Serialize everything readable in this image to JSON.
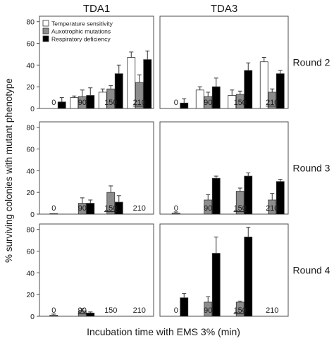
{
  "chart_data": {
    "type": "bar",
    "column_titles": [
      "TDA1",
      "TDA3"
    ],
    "row_titles": [
      "Round 2",
      "Round 3",
      "Round 4"
    ],
    "ylabel": "% surviving colonies with mutant phenotype",
    "xlabel": "Incubation time with EMS 3% (min)",
    "categories": [
      "0",
      "90",
      "150",
      "210"
    ],
    "ylim": [
      0,
      85
    ],
    "yticks": [
      0,
      20,
      40,
      60,
      80
    ],
    "legend": {
      "placement": "top-left of first panel",
      "entries": [
        {
          "name": "Temperature sensitivity",
          "color": "#ffffff"
        },
        {
          "name": "Auxotrophic mutations",
          "color": "#8c8c8c"
        },
        {
          "name": "Respiratory deficiency",
          "color": "#000000"
        }
      ]
    },
    "colors": {
      "temperature": "#ffffff",
      "auxotrophic": "#8c8c8c",
      "respiratory": "#000000",
      "axis": "#4d4d4d"
    },
    "panels": [
      {
        "strain": "TDA1",
        "round": "Round 2",
        "underlined_category": "210",
        "series": [
          {
            "name": "Temperature sensitivity",
            "values": [
              null,
              10,
              15,
              47
            ],
            "errors": [
              0,
              1.5,
              3,
              5
            ]
          },
          {
            "name": "Auxotrophic mutations",
            "values": [
              null,
              11,
              18,
              24
            ],
            "errors": [
              0,
              6,
              3,
              7
            ]
          },
          {
            "name": "Respiratory deficiency",
            "values": [
              6,
              12,
              32,
              45
            ],
            "errors": [
              4,
              7,
              8,
              8
            ]
          }
        ]
      },
      {
        "strain": "TDA3",
        "round": "Round 2",
        "underlined_category": "210",
        "series": [
          {
            "name": "Temperature sensitivity",
            "values": [
              null,
              17,
              12,
              43
            ],
            "errors": [
              0,
              3,
              5,
              4
            ]
          },
          {
            "name": "Auxotrophic mutations",
            "values": [
              null,
              11,
              13,
              15
            ],
            "errors": [
              0,
              4,
              3,
              3
            ]
          },
          {
            "name": "Respiratory deficiency",
            "values": [
              5,
              20,
              35,
              32
            ],
            "errors": [
              4,
              8,
              7,
              3
            ]
          }
        ]
      },
      {
        "strain": "TDA1",
        "round": "Round 3",
        "underlined_category": "150",
        "series": [
          {
            "name": "Temperature sensitivity",
            "values": [
              null,
              null,
              null,
              null
            ],
            "errors": [
              0,
              0,
              0,
              0
            ]
          },
          {
            "name": "Auxotrophic mutations",
            "values": [
              0.5,
              10,
              20,
              null
            ],
            "errors": [
              0,
              5,
              6,
              0
            ]
          },
          {
            "name": "Respiratory deficiency",
            "values": [
              null,
              10,
              11,
              null
            ],
            "errors": [
              0,
              3,
              6,
              0
            ]
          }
        ]
      },
      {
        "strain": "TDA3",
        "round": "Round 3",
        "underlined_category": "150",
        "series": [
          {
            "name": "Temperature sensitivity",
            "values": [
              null,
              null,
              null,
              null
            ],
            "errors": [
              0,
              0,
              0,
              0
            ]
          },
          {
            "name": "Auxotrophic mutations",
            "values": [
              1,
              13,
              21,
              13
            ],
            "errors": [
              1,
              5,
              3,
              6
            ]
          },
          {
            "name": "Respiratory deficiency",
            "values": [
              null,
              33,
              35,
              30
            ],
            "errors": [
              0,
              2,
              3,
              2
            ]
          }
        ]
      },
      {
        "strain": "TDA1",
        "round": "Round 4",
        "underlined_category": "90",
        "series": [
          {
            "name": "Temperature sensitivity",
            "values": [
              null,
              null,
              null,
              null
            ],
            "errors": [
              0,
              0,
              0,
              0
            ]
          },
          {
            "name": "Auxotrophic mutations",
            "values": [
              1,
              5,
              null,
              null
            ],
            "errors": [
              1,
              2,
              0,
              0
            ]
          },
          {
            "name": "Respiratory deficiency",
            "values": [
              null,
              3,
              null,
              null
            ],
            "errors": [
              0,
              1,
              0,
              0
            ]
          }
        ]
      },
      {
        "strain": "TDA3",
        "round": "Round 4",
        "underlined_category": "150",
        "series": [
          {
            "name": "Temperature sensitivity",
            "values": [
              null,
              null,
              null,
              null
            ],
            "errors": [
              0,
              0,
              0,
              0
            ]
          },
          {
            "name": "Auxotrophic mutations",
            "values": [
              null,
              13,
              13,
              null
            ],
            "errors": [
              0,
              5,
              1,
              0
            ]
          },
          {
            "name": "Respiratory deficiency",
            "values": [
              17,
              58,
              73,
              null
            ],
            "errors": [
              4,
              15,
              9,
              0
            ]
          }
        ]
      }
    ]
  }
}
